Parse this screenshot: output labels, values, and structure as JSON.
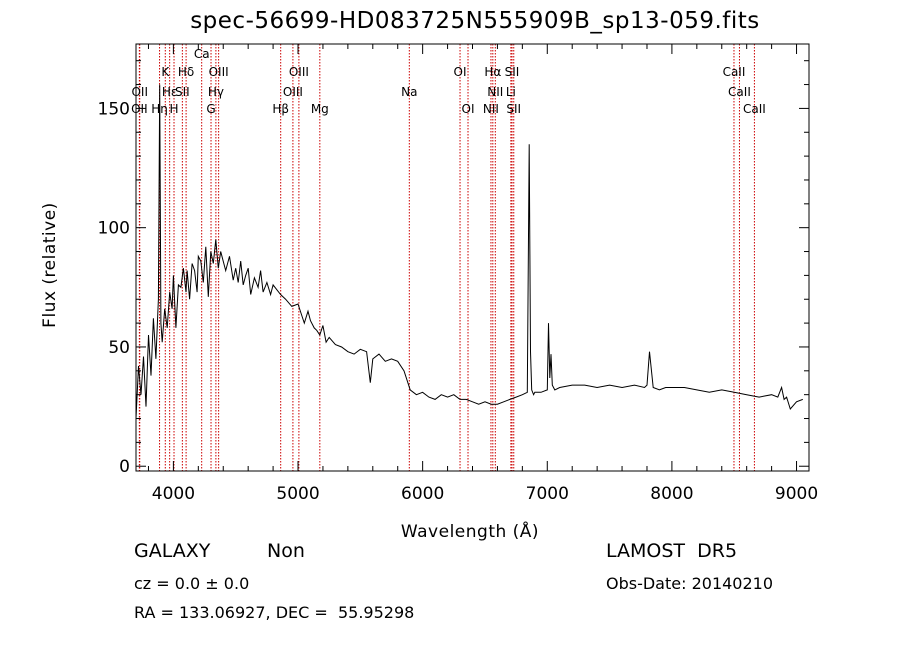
{
  "chart_data": {
    "type": "line",
    "title": "spec-56699-HD083725N555909B_sp13-059.fits",
    "xlabel": "Wavelength (Å)",
    "ylabel": "Flux (relative)",
    "xlim": [
      3700,
      9100
    ],
    "ylim": [
      -2,
      177
    ],
    "xticks": [
      4000,
      5000,
      6000,
      7000,
      8000,
      9000
    ],
    "yticks": [
      0,
      50,
      100,
      150
    ],
    "grid": false,
    "series_color": "#000000",
    "line_color": "#cc0000",
    "series": [
      {
        "x": [
          3700,
          3720,
          3740,
          3760,
          3780,
          3800,
          3820,
          3840,
          3860,
          3880,
          3890,
          3900,
          3910,
          3930,
          3950,
          3970,
          3990,
          4000,
          4020,
          4040,
          4060,
          4080,
          4101,
          4110,
          4130,
          4150,
          4170,
          4190,
          4200,
          4220,
          4240,
          4260,
          4280,
          4300,
          4320,
          4340,
          4360,
          4380,
          4400,
          4420,
          4450,
          4480,
          4500,
          4520,
          4540,
          4560,
          4580,
          4600,
          4620,
          4650,
          4680,
          4700,
          4720,
          4750,
          4780,
          4800,
          4830,
          4860,
          4900,
          4950,
          5000,
          5050,
          5080,
          5100,
          5130,
          5150,
          5175,
          5200,
          5225,
          5250,
          5300,
          5350,
          5400,
          5450,
          5500,
          5550,
          5580,
          5600,
          5650,
          5700,
          5750,
          5800,
          5850,
          5900,
          5950,
          6000,
          6050,
          6100,
          6150,
          6200,
          6250,
          6300,
          6350,
          6400,
          6450,
          6500,
          6550,
          6600,
          6650,
          6700,
          6750,
          6800,
          6840,
          6855,
          6865,
          6875,
          6890,
          6900,
          6950,
          7000,
          7010,
          7020,
          7030,
          7040,
          7060,
          7100,
          7200,
          7300,
          7400,
          7500,
          7600,
          7700,
          7780,
          7800,
          7820,
          7850,
          7900,
          7950,
          8000,
          8100,
          8200,
          8300,
          8400,
          8500,
          8600,
          8700,
          8800,
          8850,
          8880,
          8900,
          8920,
          8950,
          9000,
          9050
        ],
        "values": [
          20,
          42,
          30,
          46,
          25,
          55,
          38,
          62,
          45,
          70,
          160,
          60,
          52,
          66,
          58,
          73,
          66,
          80,
          58,
          76,
          75,
          83,
          73,
          82,
          70,
          85,
          82,
          73,
          88,
          86,
          77,
          92,
          71,
          90,
          85,
          95,
          83,
          90,
          86,
          82,
          88,
          78,
          83,
          77,
          86,
          76,
          80,
          83,
          72,
          79,
          75,
          82,
          73,
          77,
          72,
          76,
          74,
          72,
          70,
          67,
          68,
          60,
          65,
          61,
          58,
          57,
          55,
          59,
          52,
          54,
          51,
          50,
          48,
          47,
          49,
          48,
          35,
          45,
          47,
          44,
          45,
          44,
          40,
          32,
          30,
          31,
          29,
          28,
          30,
          29,
          30,
          28,
          28,
          27,
          26,
          27,
          26,
          26,
          27,
          28,
          29,
          30,
          31,
          135,
          48,
          32,
          30,
          31,
          31,
          32,
          60,
          37,
          47,
          34,
          32,
          33,
          34,
          34,
          33,
          34,
          33,
          34,
          33,
          34,
          48,
          33,
          32,
          33,
          33,
          33,
          32,
          31,
          32,
          31,
          30,
          29,
          30,
          29,
          33,
          28,
          29,
          24,
          27,
          28
        ]
      }
    ],
    "lines": [
      {
        "x": 3727,
        "label": "OII",
        "row": 3
      },
      {
        "x": 3730,
        "label": "OII",
        "row": 2
      },
      {
        "x": 3889,
        "label": "Hη",
        "row": 3
      },
      {
        "x": 3935,
        "label": "K",
        "row": 1
      },
      {
        "x": 3970,
        "label": "Hε",
        "row": 2
      },
      {
        "x": 4005,
        "label": "H",
        "row": 3
      },
      {
        "x": 4072,
        "label": "SII",
        "row": 2
      },
      {
        "x": 4102,
        "label": "Hδ",
        "row": 1
      },
      {
        "x": 4227,
        "label": "Ca",
        "row": 0
      },
      {
        "x": 4302,
        "label": "G",
        "row": 3
      },
      {
        "x": 4341,
        "label": "Hγ",
        "row": 2
      },
      {
        "x": 4363,
        "label": "OIII",
        "row": 1
      },
      {
        "x": 4861,
        "label": "Hβ",
        "row": 3
      },
      {
        "x": 4959,
        "label": "OIII",
        "row": 2
      },
      {
        "x": 5007,
        "label": "OIII",
        "row": 1
      },
      {
        "x": 5175,
        "label": "Mg",
        "row": 3
      },
      {
        "x": 5893,
        "label": "Na",
        "row": 2
      },
      {
        "x": 6300,
        "label": "OI",
        "row": 1
      },
      {
        "x": 6364,
        "label": "OI",
        "row": 3
      },
      {
        "x": 6548,
        "label": "NII",
        "row": 3
      },
      {
        "x": 6563,
        "label": "Hα",
        "row": 1
      },
      {
        "x": 6583,
        "label": "NII",
        "row": 2
      },
      {
        "x": 6708,
        "label": "Li",
        "row": 2
      },
      {
        "x": 6717,
        "label": "SII",
        "row": 1
      },
      {
        "x": 6731,
        "label": "SII",
        "row": 3
      },
      {
        "x": 8498,
        "label": "CaII",
        "row": 1
      },
      {
        "x": 8542,
        "label": "CaII",
        "row": 2
      },
      {
        "x": 8662,
        "label": "CaII",
        "row": 3
      }
    ]
  },
  "info": {
    "class": "GALAXY",
    "subclass": "Non",
    "survey": "LAMOST  DR5",
    "cz": "cz = 0.0 ± 0.0",
    "obs_date": "Obs-Date: 20140210",
    "coords": "RA = 133.06927, DEC =  55.95298"
  }
}
